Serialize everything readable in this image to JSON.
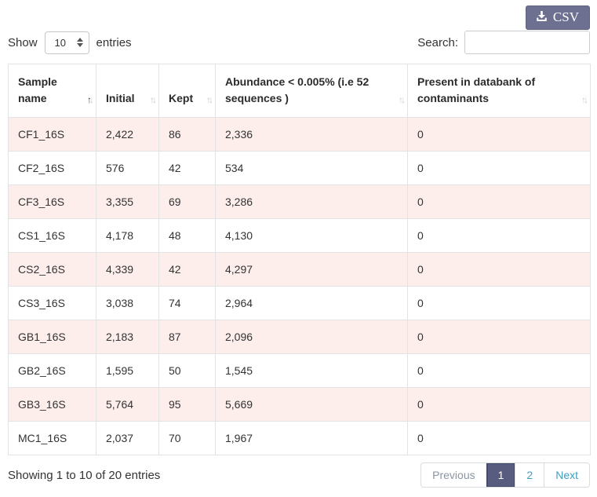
{
  "export_button": {
    "label": "CSV",
    "icon": "download-icon"
  },
  "length_menu": {
    "prefix": "Show",
    "suffix": "entries",
    "selected": "10"
  },
  "search": {
    "label": "Search:",
    "value": ""
  },
  "table": {
    "columns": [
      {
        "label": "Sample name",
        "sort": "asc"
      },
      {
        "label": "Initial",
        "sort": "none"
      },
      {
        "label": "Kept",
        "sort": "none"
      },
      {
        "label": "Abundance < 0.005% (i.e 52 sequences )",
        "sort": "none"
      },
      {
        "label": "Present in databank of contaminants",
        "sort": "none"
      }
    ],
    "rows": [
      [
        "CF1_16S",
        "2,422",
        "86",
        "2,336",
        "0"
      ],
      [
        "CF2_16S",
        "576",
        "42",
        "534",
        "0"
      ],
      [
        "CF3_16S",
        "3,355",
        "69",
        "3,286",
        "0"
      ],
      [
        "CS1_16S",
        "4,178",
        "48",
        "4,130",
        "0"
      ],
      [
        "CS2_16S",
        "4,339",
        "42",
        "4,297",
        "0"
      ],
      [
        "CS3_16S",
        "3,038",
        "74",
        "2,964",
        "0"
      ],
      [
        "GB1_16S",
        "2,183",
        "87",
        "2,096",
        "0"
      ],
      [
        "GB2_16S",
        "1,595",
        "50",
        "1,545",
        "0"
      ],
      [
        "GB3_16S",
        "5,764",
        "95",
        "5,669",
        "0"
      ],
      [
        "MC1_16S",
        "2,037",
        "70",
        "1,967",
        "0"
      ]
    ]
  },
  "footer": {
    "info": "Showing 1 to 10 of 20 entries",
    "pagination": {
      "previous": "Previous",
      "pages": [
        "1",
        "2"
      ],
      "active_page": "1",
      "next": "Next"
    }
  },
  "colors": {
    "stripe_pink": "#fdeeec",
    "csv_button_bg": "#6d7090",
    "active_page_bg": "#585c7e",
    "pagination_link": "#3f9ec2",
    "disabled_link": "#8b95a1",
    "sorted_arrow": "#3d3d3d",
    "unsorted_arrow": "#c6cace"
  }
}
